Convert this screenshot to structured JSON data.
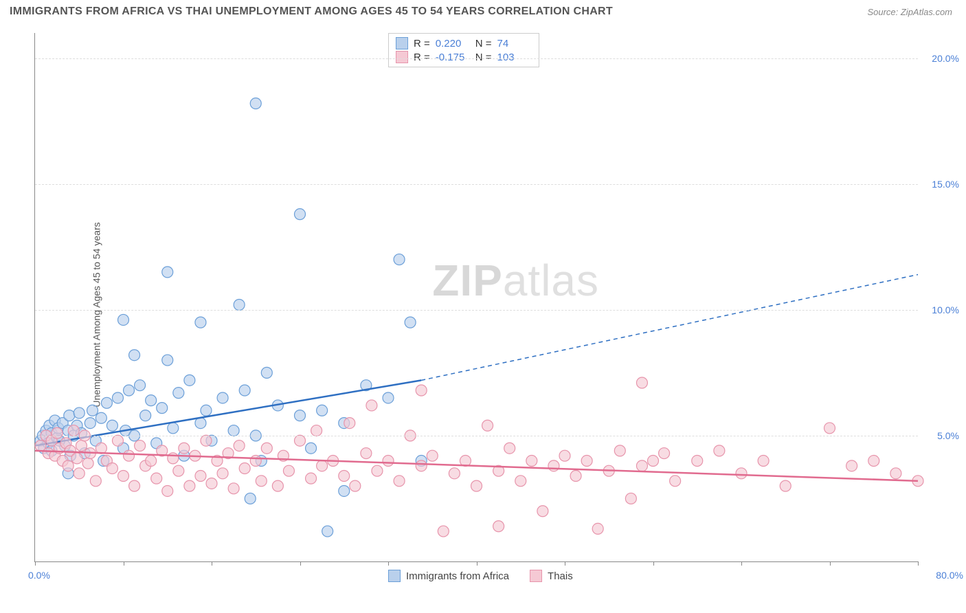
{
  "title": "IMMIGRANTS FROM AFRICA VS THAI UNEMPLOYMENT AMONG AGES 45 TO 54 YEARS CORRELATION CHART",
  "source": "Source: ZipAtlas.com",
  "y_axis_label": "Unemployment Among Ages 45 to 54 years",
  "watermark_bold": "ZIP",
  "watermark_light": "atlas",
  "chart": {
    "type": "scatter",
    "xlim": [
      0,
      80
    ],
    "ylim": [
      0,
      21
    ],
    "x_origin_label": "0.0%",
    "x_max_label": "80.0%",
    "x_ticks": [
      0,
      8,
      16,
      24,
      32,
      40,
      48,
      56,
      64,
      72,
      80
    ],
    "y_gridlines": [
      {
        "value": 5,
        "label": "5.0%"
      },
      {
        "value": 10,
        "label": "10.0%"
      },
      {
        "value": 15,
        "label": "15.0%"
      },
      {
        "value": 20,
        "label": "20.0%"
      }
    ],
    "series": [
      {
        "name": "Immigrants from Africa",
        "color_fill": "#b9d0ec",
        "color_stroke": "#6b9fd8",
        "marker_radius": 8,
        "fill_opacity": 0.65,
        "trend_color": "#2e6fc2",
        "trend_width": 2.5,
        "trend_start": [
          0,
          4.6
        ],
        "trend_solid_end": [
          35,
          7.2
        ],
        "trend_dash_end": [
          80,
          11.4
        ],
        "R": "0.220",
        "N": "74",
        "points": [
          [
            0.5,
            4.8
          ],
          [
            0.7,
            5.0
          ],
          [
            0.8,
            4.5
          ],
          [
            1.0,
            5.2
          ],
          [
            1.2,
            4.7
          ],
          [
            1.3,
            5.4
          ],
          [
            1.5,
            5.1
          ],
          [
            1.8,
            5.6
          ],
          [
            2.0,
            4.9
          ],
          [
            2.1,
            5.3
          ],
          [
            2.5,
            5.5
          ],
          [
            2.7,
            4.6
          ],
          [
            3.0,
            5.2
          ],
          [
            3.1,
            5.8
          ],
          [
            3.5,
            5.0
          ],
          [
            1.5,
            4.4
          ],
          [
            2.2,
            4.8
          ],
          [
            3.0,
            3.5
          ],
          [
            3.2,
            4.2
          ],
          [
            3.8,
            5.4
          ],
          [
            4.0,
            5.9
          ],
          [
            4.2,
            5.1
          ],
          [
            4.5,
            4.3
          ],
          [
            5.0,
            5.5
          ],
          [
            5.2,
            6.0
          ],
          [
            5.5,
            4.8
          ],
          [
            6.0,
            5.7
          ],
          [
            6.2,
            4.0
          ],
          [
            6.5,
            6.3
          ],
          [
            7.0,
            5.4
          ],
          [
            7.5,
            6.5
          ],
          [
            8.0,
            4.5
          ],
          [
            8.2,
            5.2
          ],
          [
            8.5,
            6.8
          ],
          [
            9.0,
            5.0
          ],
          [
            9.5,
            7.0
          ],
          [
            10.0,
            5.8
          ],
          [
            10.5,
            6.4
          ],
          [
            9.0,
            8.2
          ],
          [
            11.0,
            4.7
          ],
          [
            11.5,
            6.1
          ],
          [
            12.0,
            8.0
          ],
          [
            12.5,
            5.3
          ],
          [
            13.0,
            6.7
          ],
          [
            13.5,
            4.2
          ],
          [
            14.0,
            7.2
          ],
          [
            15.0,
            5.5
          ],
          [
            15.5,
            6.0
          ],
          [
            16.0,
            4.8
          ],
          [
            15.0,
            9.5
          ],
          [
            17.0,
            6.5
          ],
          [
            18.0,
            5.2
          ],
          [
            12.0,
            11.5
          ],
          [
            19.0,
            6.8
          ],
          [
            18.5,
            10.2
          ],
          [
            20.0,
            5.0
          ],
          [
            20.5,
            4.0
          ],
          [
            21.0,
            7.5
          ],
          [
            22.0,
            6.2
          ],
          [
            8.0,
            9.6
          ],
          [
            24.0,
            5.8
          ],
          [
            25.0,
            4.5
          ],
          [
            26.0,
            6.0
          ],
          [
            26.5,
            1.2
          ],
          [
            28.0,
            5.5
          ],
          [
            20.0,
            18.2
          ],
          [
            30.0,
            7.0
          ],
          [
            24.0,
            13.8
          ],
          [
            32.0,
            6.5
          ],
          [
            19.5,
            2.5
          ],
          [
            34.0,
            9.5
          ],
          [
            35.0,
            4.0
          ],
          [
            33.0,
            12.0
          ],
          [
            28.0,
            2.8
          ]
        ]
      },
      {
        "name": "Thais",
        "color_fill": "#f5c9d4",
        "color_stroke": "#e794ab",
        "marker_radius": 8,
        "fill_opacity": 0.65,
        "trend_color": "#e16b8f",
        "trend_width": 2.5,
        "trend_start": [
          0,
          4.4
        ],
        "trend_solid_end": [
          80,
          3.2
        ],
        "R": "-0.175",
        "N": "103",
        "points": [
          [
            0.5,
            4.6
          ],
          [
            1.0,
            5.0
          ],
          [
            1.2,
            4.3
          ],
          [
            1.5,
            4.8
          ],
          [
            1.8,
            4.2
          ],
          [
            2.0,
            5.1
          ],
          [
            2.2,
            4.5
          ],
          [
            2.5,
            4.0
          ],
          [
            2.8,
            4.7
          ],
          [
            3.0,
            3.8
          ],
          [
            3.2,
            4.4
          ],
          [
            3.5,
            5.2
          ],
          [
            3.8,
            4.1
          ],
          [
            4.0,
            3.5
          ],
          [
            4.2,
            4.6
          ],
          [
            4.5,
            5.0
          ],
          [
            4.8,
            3.9
          ],
          [
            5.0,
            4.3
          ],
          [
            5.5,
            3.2
          ],
          [
            6.0,
            4.5
          ],
          [
            6.5,
            4.0
          ],
          [
            7.0,
            3.7
          ],
          [
            7.5,
            4.8
          ],
          [
            8.0,
            3.4
          ],
          [
            8.5,
            4.2
          ],
          [
            9.0,
            3.0
          ],
          [
            9.5,
            4.6
          ],
          [
            10.0,
            3.8
          ],
          [
            10.5,
            4.0
          ],
          [
            11.0,
            3.3
          ],
          [
            11.5,
            4.4
          ],
          [
            12.0,
            2.8
          ],
          [
            12.5,
            4.1
          ],
          [
            13.0,
            3.6
          ],
          [
            13.5,
            4.5
          ],
          [
            14.0,
            3.0
          ],
          [
            14.5,
            4.2
          ],
          [
            15.0,
            3.4
          ],
          [
            15.5,
            4.8
          ],
          [
            16.0,
            3.1
          ],
          [
            16.5,
            4.0
          ],
          [
            17.0,
            3.5
          ],
          [
            17.5,
            4.3
          ],
          [
            18.0,
            2.9
          ],
          [
            18.5,
            4.6
          ],
          [
            19.0,
            3.7
          ],
          [
            20.0,
            4.0
          ],
          [
            20.5,
            3.2
          ],
          [
            21.0,
            4.5
          ],
          [
            22.0,
            3.0
          ],
          [
            22.5,
            4.2
          ],
          [
            23.0,
            3.6
          ],
          [
            24.0,
            4.8
          ],
          [
            25.0,
            3.3
          ],
          [
            25.5,
            5.2
          ],
          [
            26.0,
            3.8
          ],
          [
            27.0,
            4.0
          ],
          [
            28.0,
            3.4
          ],
          [
            28.5,
            5.5
          ],
          [
            29.0,
            3.0
          ],
          [
            30.0,
            4.3
          ],
          [
            30.5,
            6.2
          ],
          [
            31.0,
            3.6
          ],
          [
            32.0,
            4.0
          ],
          [
            33.0,
            3.2
          ],
          [
            34.0,
            5.0
          ],
          [
            35.0,
            3.8
          ],
          [
            36.0,
            4.2
          ],
          [
            37.0,
            1.2
          ],
          [
            38.0,
            3.5
          ],
          [
            35.0,
            6.8
          ],
          [
            39.0,
            4.0
          ],
          [
            40.0,
            3.0
          ],
          [
            41.0,
            5.4
          ],
          [
            42.0,
            3.6
          ],
          [
            43.0,
            4.5
          ],
          [
            42.0,
            1.4
          ],
          [
            44.0,
            3.2
          ],
          [
            45.0,
            4.0
          ],
          [
            46.0,
            2.0
          ],
          [
            47.0,
            3.8
          ],
          [
            48.0,
            4.2
          ],
          [
            49.0,
            3.4
          ],
          [
            50.0,
            4.0
          ],
          [
            51.0,
            1.3
          ],
          [
            52.0,
            3.6
          ],
          [
            53.0,
            4.4
          ],
          [
            54.0,
            2.5
          ],
          [
            55.0,
            3.8
          ],
          [
            56.0,
            4.0
          ],
          [
            57.0,
            4.3
          ],
          [
            58.0,
            3.2
          ],
          [
            55.0,
            7.1
          ],
          [
            60.0,
            4.0
          ],
          [
            62.0,
            4.4
          ],
          [
            64.0,
            3.5
          ],
          [
            66.0,
            4.0
          ],
          [
            68.0,
            3.0
          ],
          [
            72.0,
            5.3
          ],
          [
            74.0,
            3.8
          ],
          [
            76.0,
            4.0
          ],
          [
            78.0,
            3.5
          ],
          [
            80.0,
            3.2
          ]
        ]
      }
    ]
  },
  "legend_bottom": [
    {
      "label": "Immigrants from Africa",
      "fill": "#b9d0ec",
      "stroke": "#6b9fd8"
    },
    {
      "label": "Thais",
      "fill": "#f5c9d4",
      "stroke": "#e794ab"
    }
  ]
}
